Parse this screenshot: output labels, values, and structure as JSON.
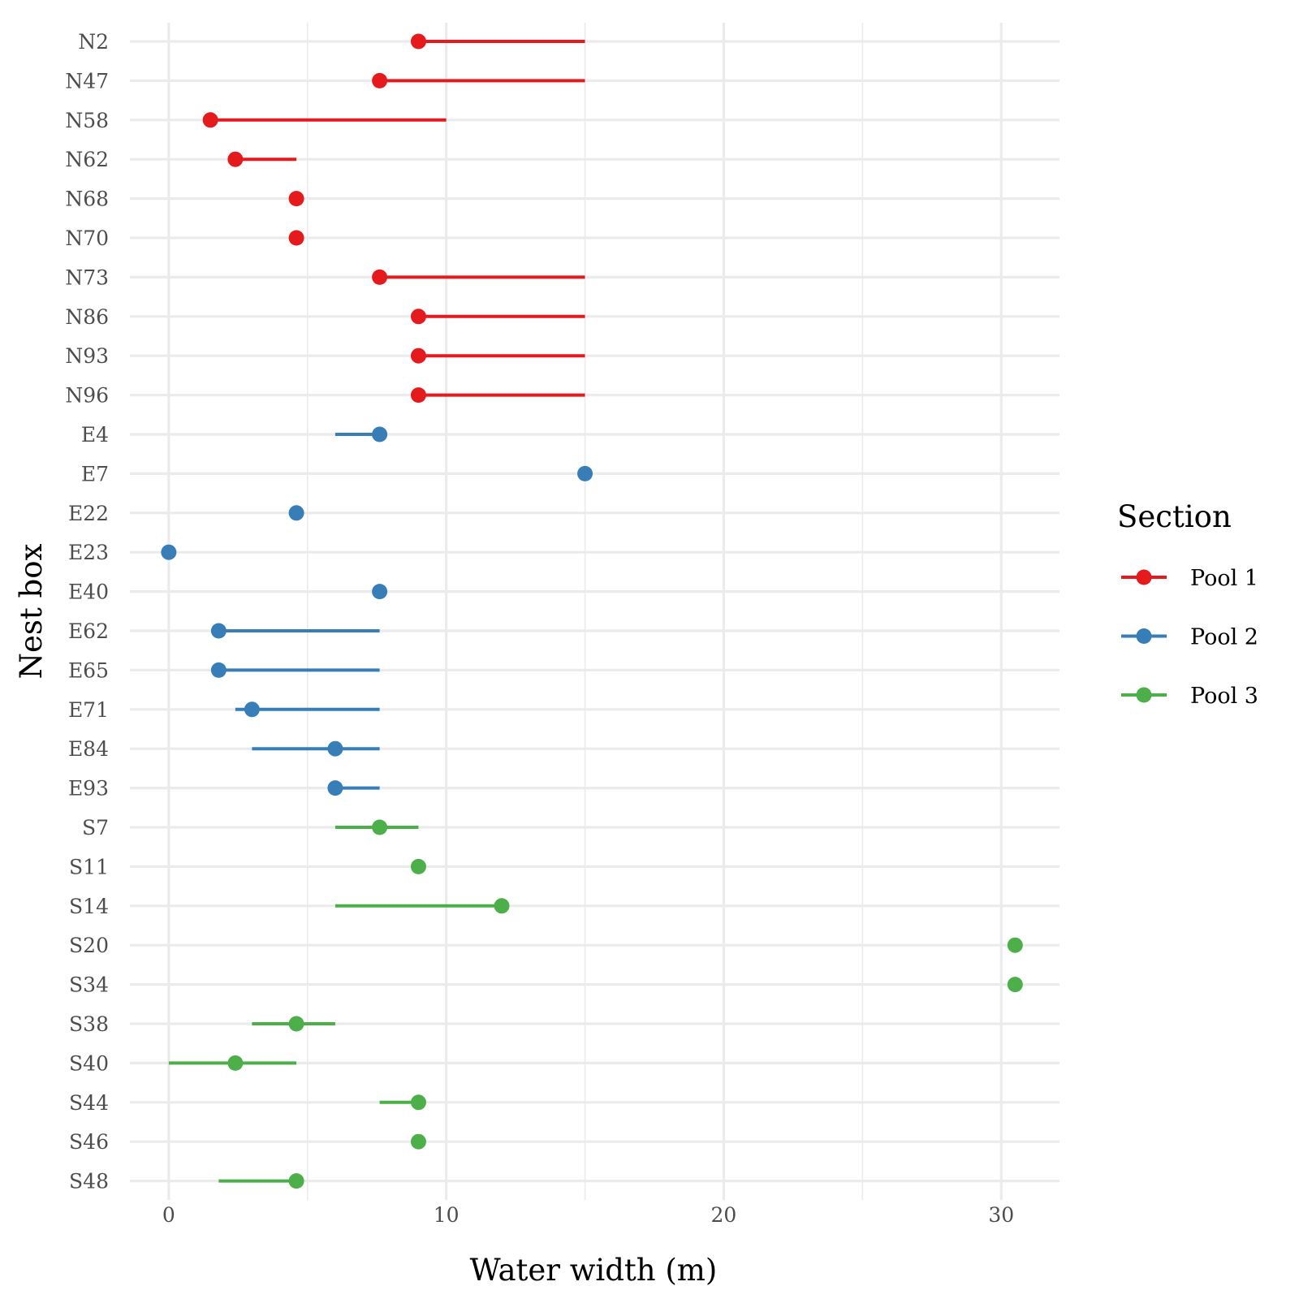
{
  "chart_data": {
    "type": "dot-range",
    "xlabel": "Water width (m)",
    "ylabel": "Nest box",
    "xlim": [
      -1.4,
      32.1
    ],
    "x_ticks": [
      0,
      10,
      20,
      30
    ],
    "grid": true,
    "legend": {
      "title": "Section",
      "position": "right",
      "entries": [
        {
          "name": "Pool 1",
          "color": "#E41A1C"
        },
        {
          "name": "Pool 2",
          "color": "#377EB8"
        },
        {
          "name": "Pool 3",
          "color": "#4DAF4A"
        }
      ]
    },
    "points": [
      {
        "box": "N2",
        "section": "Pool 1",
        "value": 9.0,
        "range": [
          9.0,
          15.0
        ]
      },
      {
        "box": "N47",
        "section": "Pool 1",
        "value": 7.6,
        "range": [
          7.6,
          15.0
        ]
      },
      {
        "box": "N58",
        "section": "Pool 1",
        "value": 1.5,
        "range": [
          1.5,
          10.0
        ]
      },
      {
        "box": "N62",
        "section": "Pool 1",
        "value": 2.4,
        "range": [
          2.4,
          4.6
        ]
      },
      {
        "box": "N68",
        "section": "Pool 1",
        "value": 4.6,
        "range": null
      },
      {
        "box": "N70",
        "section": "Pool 1",
        "value": 4.6,
        "range": null
      },
      {
        "box": "N73",
        "section": "Pool 1",
        "value": 7.6,
        "range": [
          7.6,
          15.0
        ]
      },
      {
        "box": "N86",
        "section": "Pool 1",
        "value": 9.0,
        "range": [
          9.0,
          15.0
        ]
      },
      {
        "box": "N93",
        "section": "Pool 1",
        "value": 9.0,
        "range": [
          9.0,
          15.0
        ]
      },
      {
        "box": "N96",
        "section": "Pool 1",
        "value": 9.0,
        "range": [
          9.0,
          15.0
        ]
      },
      {
        "box": "E4",
        "section": "Pool 2",
        "value": 7.6,
        "range": [
          6.0,
          7.6
        ]
      },
      {
        "box": "E7",
        "section": "Pool 2",
        "value": 15.0,
        "range": null
      },
      {
        "box": "E22",
        "section": "Pool 2",
        "value": 4.6,
        "range": null
      },
      {
        "box": "E23",
        "section": "Pool 2",
        "value": 0.0,
        "range": null
      },
      {
        "box": "E40",
        "section": "Pool 2",
        "value": 7.6,
        "range": null
      },
      {
        "box": "E62",
        "section": "Pool 2",
        "value": 1.8,
        "range": [
          1.8,
          7.6
        ]
      },
      {
        "box": "E65",
        "section": "Pool 2",
        "value": 1.8,
        "range": [
          1.8,
          7.6
        ]
      },
      {
        "box": "E71",
        "section": "Pool 2",
        "value": 3.0,
        "range": [
          2.4,
          7.6
        ]
      },
      {
        "box": "E84",
        "section": "Pool 2",
        "value": 6.0,
        "range": [
          3.0,
          7.6
        ]
      },
      {
        "box": "E93",
        "section": "Pool 2",
        "value": 6.0,
        "range": [
          6.0,
          7.6
        ]
      },
      {
        "box": "S7",
        "section": "Pool 3",
        "value": 7.6,
        "range": [
          6.0,
          9.0
        ]
      },
      {
        "box": "S11",
        "section": "Pool 3",
        "value": 9.0,
        "range": null
      },
      {
        "box": "S14",
        "section": "Pool 3",
        "value": 12.0,
        "range": [
          6.0,
          12.0
        ]
      },
      {
        "box": "S20",
        "section": "Pool 3",
        "value": 30.5,
        "range": null
      },
      {
        "box": "S34",
        "section": "Pool 3",
        "value": 30.5,
        "range": null
      },
      {
        "box": "S38",
        "section": "Pool 3",
        "value": 4.6,
        "range": [
          3.0,
          6.0
        ]
      },
      {
        "box": "S40",
        "section": "Pool 3",
        "value": 2.4,
        "range": [
          0.0,
          4.6
        ]
      },
      {
        "box": "S44",
        "section": "Pool 3",
        "value": 9.0,
        "range": [
          7.6,
          9.0
        ]
      },
      {
        "box": "S46",
        "section": "Pool 3",
        "value": 9.0,
        "range": null
      },
      {
        "box": "S48",
        "section": "Pool 3",
        "value": 4.6,
        "range": [
          1.8,
          4.6
        ]
      }
    ]
  }
}
